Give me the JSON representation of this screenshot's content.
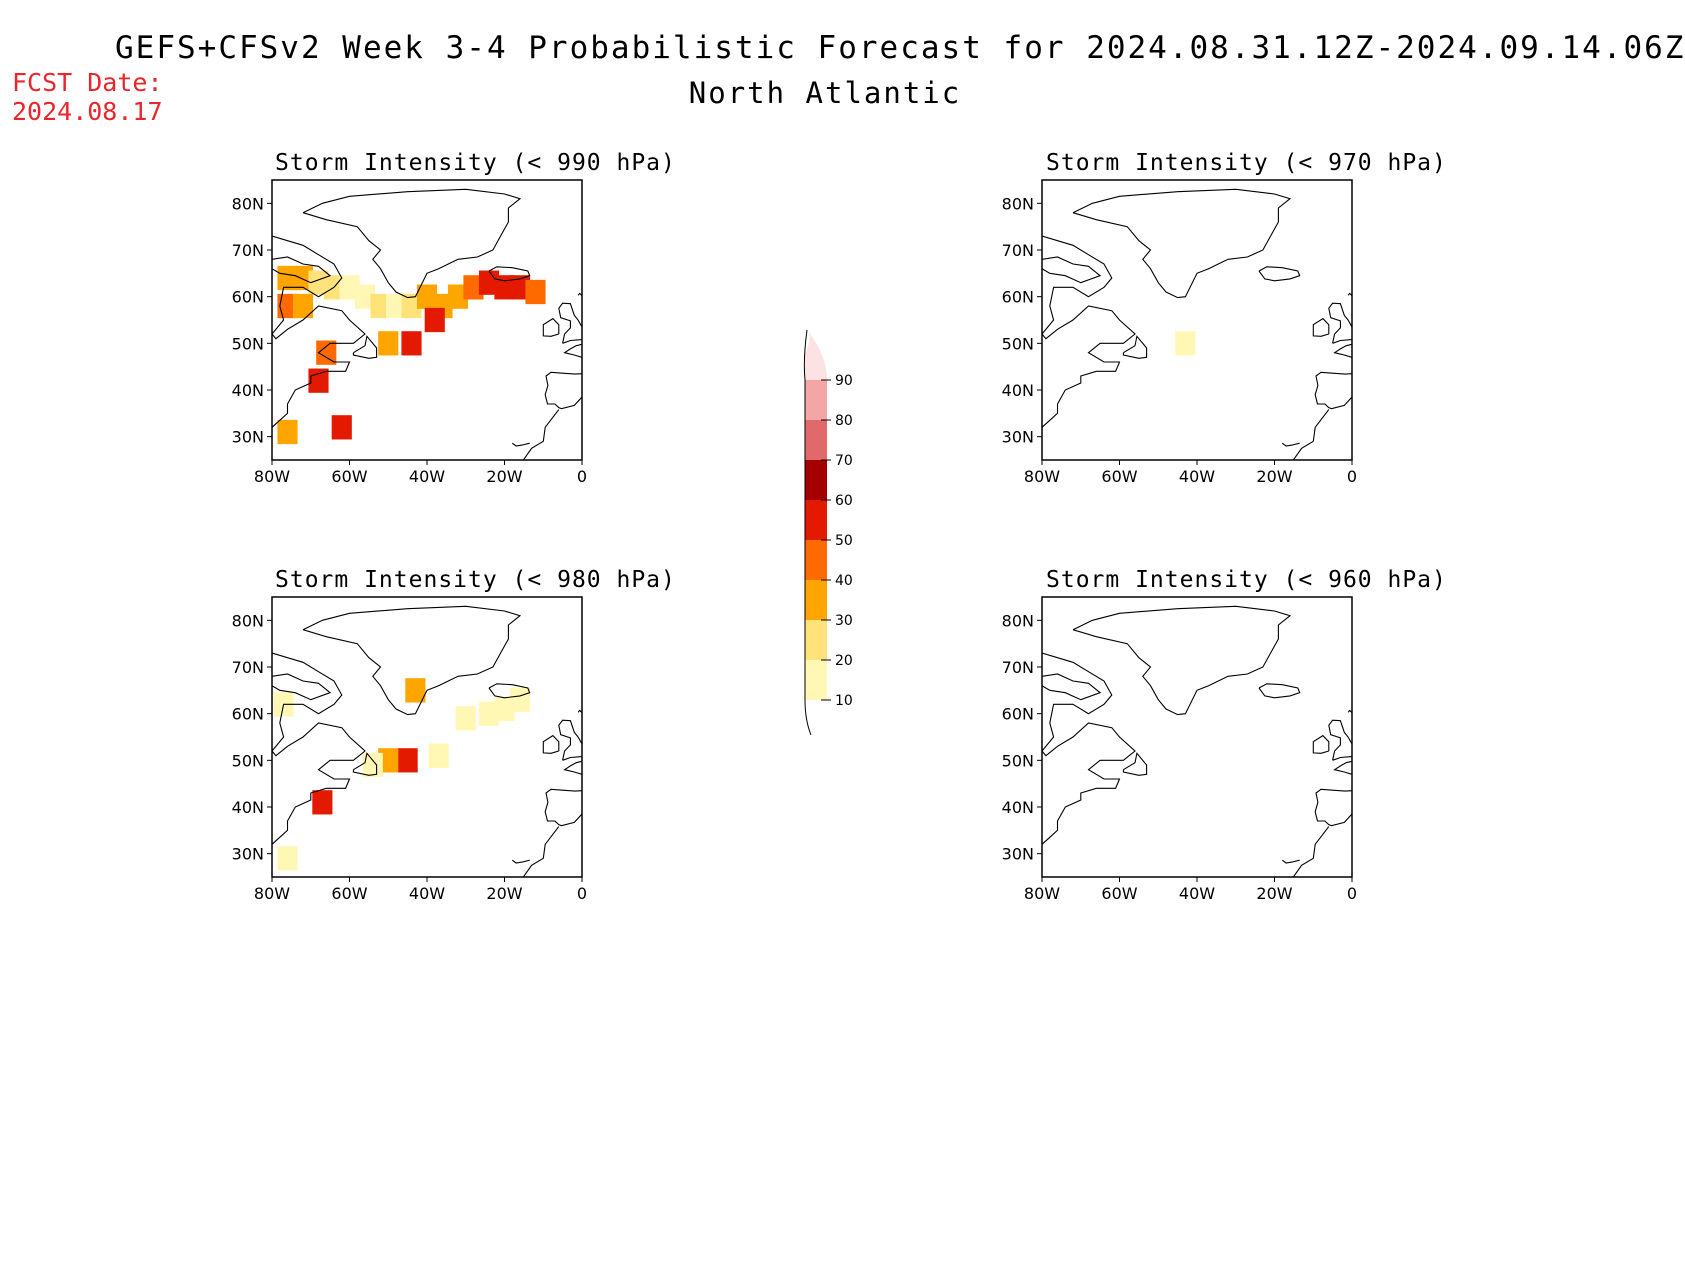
{
  "header": {
    "title": "GEFS+CFSv2 Week 3-4 Probabilistic Forecast for 2024.08.31.12Z-2024.09.14.06Z",
    "region": "North Atlantic",
    "fcst_label": "FCST Date:",
    "fcst_date": "2024.08.17"
  },
  "map": {
    "lat_labels": [
      "80N",
      "70N",
      "60N",
      "50N",
      "40N",
      "30N"
    ],
    "lon_labels": [
      "80W",
      "60W",
      "40W",
      "20W",
      "0"
    ]
  },
  "panels": [
    {
      "id": "p990",
      "title": "Storm Intensity (< 990 hPa)"
    },
    {
      "id": "p970",
      "title": "Storm Intensity (< 970 hPa)"
    },
    {
      "id": "p980",
      "title": "Storm Intensity (< 980 hPa)"
    },
    {
      "id": "p960",
      "title": "Storm Intensity (< 960 hPa)"
    }
  ],
  "colorbar": {
    "levels": [
      "10",
      "20",
      "30",
      "40",
      "50",
      "60",
      "70",
      "80",
      "90"
    ],
    "colors": [
      "#fff7b3",
      "#ffe27a",
      "#ffa500",
      "#ff6a00",
      "#e41a00",
      "#a50000",
      "#e06a6a",
      "#f4a6a6",
      "#fde2e4"
    ]
  },
  "chart_data": [
    {
      "type": "heatmap",
      "name": "Storm Intensity (< 990 hPa)",
      "units": "%",
      "xlim": [
        -80,
        0
      ],
      "ylim": [
        25,
        85
      ],
      "cells": [
        {
          "lon": -76,
          "lat": 64,
          "v": 35
        },
        {
          "lon": -72,
          "lat": 64,
          "v": 30
        },
        {
          "lon": -68,
          "lat": 63,
          "v": 25
        },
        {
          "lon": -64,
          "lat": 62,
          "v": 20
        },
        {
          "lon": -60,
          "lat": 62,
          "v": 15
        },
        {
          "lon": -56,
          "lat": 60,
          "v": 15
        },
        {
          "lon": -52,
          "lat": 58,
          "v": 20
        },
        {
          "lon": -48,
          "lat": 58,
          "v": 15
        },
        {
          "lon": -44,
          "lat": 58,
          "v": 20
        },
        {
          "lon": -40,
          "lat": 60,
          "v": 30
        },
        {
          "lon": -36,
          "lat": 58,
          "v": 35
        },
        {
          "lon": -32,
          "lat": 60,
          "v": 30
        },
        {
          "lon": -28,
          "lat": 62,
          "v": 40
        },
        {
          "lon": -24,
          "lat": 63,
          "v": 55
        },
        {
          "lon": -20,
          "lat": 62,
          "v": 55
        },
        {
          "lon": -16,
          "lat": 62,
          "v": 50
        },
        {
          "lon": -12,
          "lat": 61,
          "v": 45
        },
        {
          "lon": -38,
          "lat": 55,
          "v": 55
        },
        {
          "lon": -44,
          "lat": 50,
          "v": 50
        },
        {
          "lon": -50,
          "lat": 50,
          "v": 35
        },
        {
          "lon": -66,
          "lat": 48,
          "v": 45
        },
        {
          "lon": -68,
          "lat": 42,
          "v": 50
        },
        {
          "lon": -62,
          "lat": 32,
          "v": 50
        },
        {
          "lon": -76,
          "lat": 31,
          "v": 35
        },
        {
          "lon": -76,
          "lat": 58,
          "v": 40
        },
        {
          "lon": -72,
          "lat": 58,
          "v": 35
        }
      ]
    },
    {
      "type": "heatmap",
      "name": "Storm Intensity (< 970 hPa)",
      "units": "%",
      "xlim": [
        -80,
        0
      ],
      "ylim": [
        25,
        85
      ],
      "cells": [
        {
          "lon": -43,
          "lat": 50,
          "v": 10
        }
      ]
    },
    {
      "type": "heatmap",
      "name": "Storm Intensity (< 980 hPa)",
      "units": "%",
      "xlim": [
        -80,
        0
      ],
      "ylim": [
        25,
        85
      ],
      "cells": [
        {
          "lon": -20,
          "lat": 61,
          "v": 15
        },
        {
          "lon": -24,
          "lat": 60,
          "v": 10
        },
        {
          "lon": -30,
          "lat": 59,
          "v": 10
        },
        {
          "lon": -16,
          "lat": 63,
          "v": 10
        },
        {
          "lon": -45,
          "lat": 50,
          "v": 50
        },
        {
          "lon": -50,
          "lat": 50,
          "v": 35
        },
        {
          "lon": -54,
          "lat": 49,
          "v": 15
        },
        {
          "lon": -67,
          "lat": 41,
          "v": 50
        },
        {
          "lon": -37,
          "lat": 51,
          "v": 10
        },
        {
          "lon": -43,
          "lat": 65,
          "v": 30
        },
        {
          "lon": -77,
          "lat": 62,
          "v": 10
        },
        {
          "lon": -76,
          "lat": 29,
          "v": 10
        }
      ]
    },
    {
      "type": "heatmap",
      "name": "Storm Intensity (< 960 hPa)",
      "units": "%",
      "xlim": [
        -80,
        0
      ],
      "ylim": [
        25,
        85
      ],
      "cells": []
    }
  ]
}
